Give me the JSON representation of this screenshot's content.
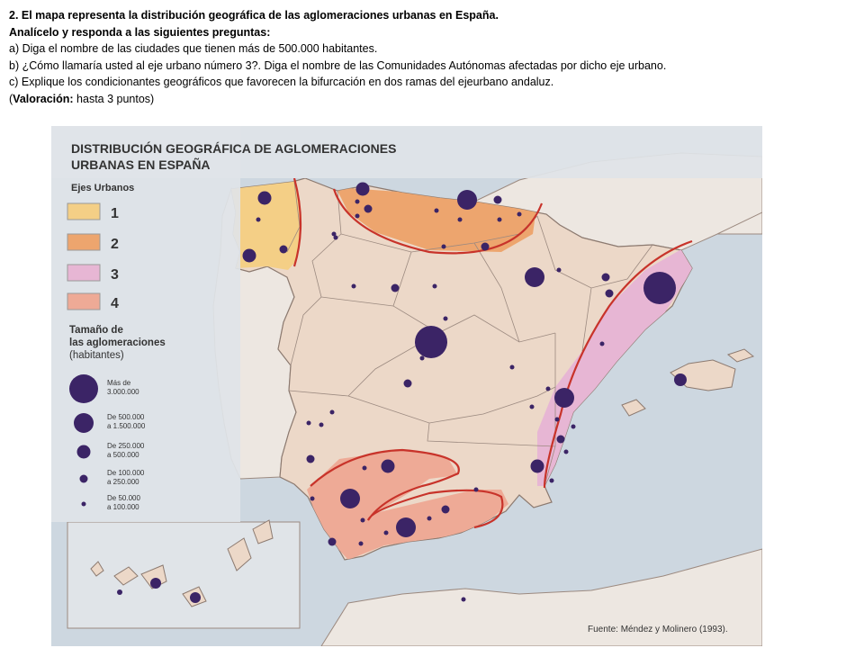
{
  "question": {
    "title": "2. El mapa representa la distribución geográfica de las aglomeraciones urbanas en España.",
    "instruction": "Analícelo y responda a las siguientes preguntas:",
    "item_a": "a) Diga el nombre de las ciudades que tienen más de 500.000 habitantes.",
    "item_b": "b) ¿Cómo llamaría usted al eje urbano número 3?. Diga el nombre de las Comunidades Autónomas  afectadas por dicho eje urbano.",
    "item_c": "c) Explique los condicionantes geográficos que favorecen la bifurcación en dos ramas del ejeurbano andaluz.",
    "score_open": "(",
    "score_label": "Valoración:",
    "score_value": " hasta 3 puntos)"
  },
  "map": {
    "title_line1": "DISTRIBUCIÓN GEOGRÁFICA DE AGLOMERACIONES",
    "title_line2": "URBANAS EN ESPAÑA",
    "axes_legend": {
      "heading": "Ejes Urbanos",
      "items": [
        {
          "label": "1",
          "color": "#f4cf86"
        },
        {
          "label": "2",
          "color": "#eda56e"
        },
        {
          "label": "3",
          "color": "#e7b6d4"
        },
        {
          "label": "4",
          "color": "#eeaa96"
        }
      ]
    },
    "size_legend": {
      "heading_line1": "Tamaño de",
      "heading_line2": "las aglomeraciones",
      "heading_line3": "(habitantes)",
      "classes": [
        {
          "line1": "Más de",
          "line2": "3.000.000"
        },
        {
          "line1": "De 500.000",
          "line2": "a 1.500.000"
        },
        {
          "line1": "De 250.000",
          "line2": "a 500.000"
        },
        {
          "line1": "De 100.000",
          "line2": "a 250.000"
        },
        {
          "line1": "De 50.000",
          "line2": "a 100.000"
        }
      ]
    },
    "source": "Fuente: Méndez y Molinero (1993).",
    "colors": {
      "sea": "#cdd7e0",
      "spain": "#ecd8c8",
      "neighbor": "#ede7e1",
      "city": "#3b2466",
      "axis_line": "#c8332a",
      "border": "#9c8a80"
    }
  }
}
